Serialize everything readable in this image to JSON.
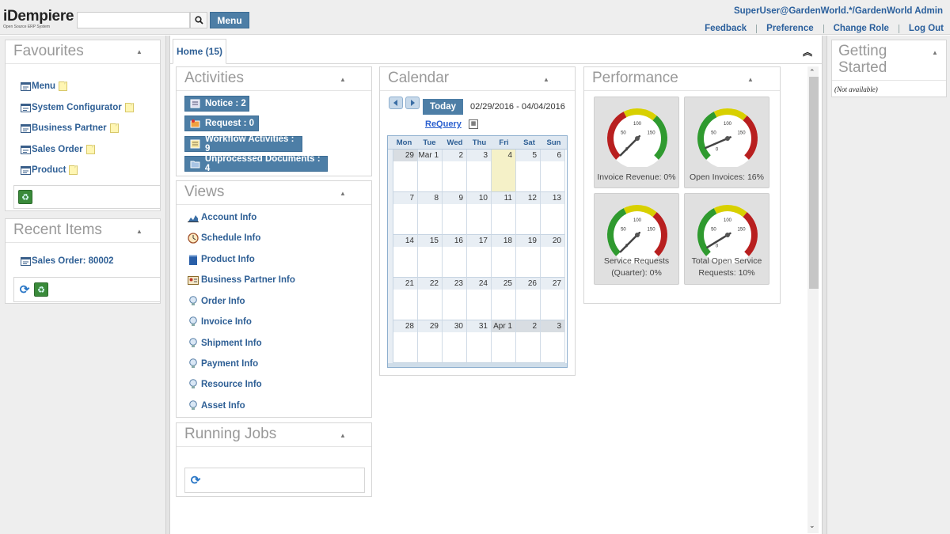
{
  "header": {
    "logo_title": "iDempiere",
    "logo_subtitle": "Open Source ERP System",
    "search_placeholder": "",
    "menu_button": "Menu",
    "user": "SuperUser@GardenWorld.*/GardenWorld Admin",
    "links": [
      "Feedback",
      "Preference",
      "Change Role",
      "Log Out"
    ]
  },
  "favourites": {
    "title": "Favourites",
    "items": [
      {
        "label": "Menu",
        "icon": "window-icon"
      },
      {
        "label": "System Configurator",
        "icon": "window-icon"
      },
      {
        "label": "Business Partner",
        "icon": "window-icon"
      },
      {
        "label": "Sales Order",
        "icon": "window-icon"
      },
      {
        "label": "Product",
        "icon": "window-icon"
      }
    ]
  },
  "recent_items": {
    "title": "Recent Items",
    "items": [
      {
        "label": "Sales Order: 80002",
        "icon": "window-icon"
      }
    ]
  },
  "tabs": [
    {
      "label": "Home (15)"
    }
  ],
  "activities": {
    "title": "Activities",
    "buttons": [
      {
        "label": "Notice : 2",
        "icon": "notice-icon"
      },
      {
        "label": "Request : 0",
        "icon": "request-icon"
      },
      {
        "label": "Workflow Activities : 9",
        "icon": "workflow-icon"
      },
      {
        "label": "Unprocessed Documents : 4",
        "icon": "folder-icon"
      }
    ]
  },
  "views": {
    "title": "Views",
    "links": [
      {
        "label": "Account Info",
        "icon": "chart-icon"
      },
      {
        "label": "Schedule Info",
        "icon": "clock-icon"
      },
      {
        "label": "Product Info",
        "icon": "product-icon"
      },
      {
        "label": "Business Partner Info",
        "icon": "contact-card-icon"
      },
      {
        "label": "Order Info",
        "icon": "info-bulb-icon"
      },
      {
        "label": "Invoice Info",
        "icon": "info-bulb-icon"
      },
      {
        "label": "Shipment Info",
        "icon": "info-bulb-icon"
      },
      {
        "label": "Payment Info",
        "icon": "info-bulb-icon"
      },
      {
        "label": "Resource Info",
        "icon": "info-bulb-icon"
      },
      {
        "label": "Asset Info",
        "icon": "info-bulb-icon"
      }
    ]
  },
  "running_jobs": {
    "title": "Running Jobs"
  },
  "calendar": {
    "title": "Calendar",
    "today_button": "Today",
    "date_range": "02/29/2016 - 04/04/2016",
    "requery_link": "ReQuery",
    "weekdays": [
      "Mon",
      "Tue",
      "Wed",
      "Thu",
      "Fri",
      "Sat",
      "Sun"
    ],
    "weeks": [
      [
        "29",
        "Mar 1",
        "2",
        "3",
        "4",
        "5",
        "6"
      ],
      [
        "7",
        "8",
        "9",
        "10",
        "11",
        "12",
        "13"
      ],
      [
        "14",
        "15",
        "16",
        "17",
        "18",
        "19",
        "20"
      ],
      [
        "21",
        "22",
        "23",
        "24",
        "25",
        "26",
        "27"
      ],
      [
        "28",
        "29",
        "30",
        "31",
        "Apr 1",
        "2",
        "3"
      ]
    ]
  },
  "performance": {
    "title": "Performance",
    "gauges": [
      {
        "label": "Invoice Revenue: 0%",
        "value": 0,
        "scheme": "red-yellow-green",
        "ticks": [
          "0",
          "50",
          "100",
          "150"
        ]
      },
      {
        "label": "Open Invoices: 16%",
        "value": 16,
        "scheme": "green-yellow-red",
        "ticks": [
          "0",
          "50",
          "100",
          "150"
        ]
      },
      {
        "label": "Service Requests (Quarter): 0%",
        "value": 0,
        "scheme": "green-yellow-red",
        "ticks": [
          "0",
          "50",
          "100",
          "150"
        ]
      },
      {
        "label": "Total Open Service Requests: 10%",
        "value": 10,
        "scheme": "green-yellow-red",
        "ticks": [
          "0",
          "50",
          "100",
          "150"
        ]
      }
    ]
  },
  "getting_started": {
    "title": "Getting Started",
    "text": "(Not available)"
  },
  "colors": {
    "accent": "#4d7ea6",
    "link": "#2e5f95",
    "today": "#f5f1c8"
  }
}
